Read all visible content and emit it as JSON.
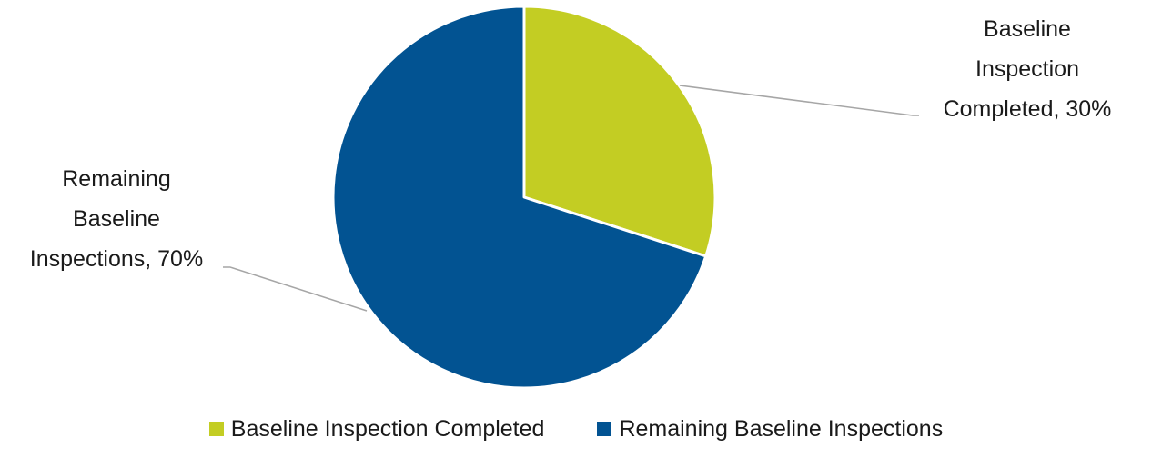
{
  "chart_data": {
    "type": "pie",
    "title": "",
    "slices": [
      {
        "name": "Baseline Inspection Completed",
        "value": 30,
        "label_lines": [
          "Baseline",
          "Inspection",
          "Completed, 30%"
        ],
        "color": "#c3cd23"
      },
      {
        "name": "Remaining Baseline Inspections",
        "value": 70,
        "label_lines": [
          "Remaining",
          "Baseline",
          "Inspections, 70%"
        ],
        "color": "#025392"
      }
    ],
    "legend_position": "bottom"
  },
  "legend": {
    "items": [
      {
        "label": "Baseline Inspection Completed",
        "color": "#c3cd23"
      },
      {
        "label": "Remaining Baseline Inspections",
        "color": "#025392"
      }
    ]
  }
}
